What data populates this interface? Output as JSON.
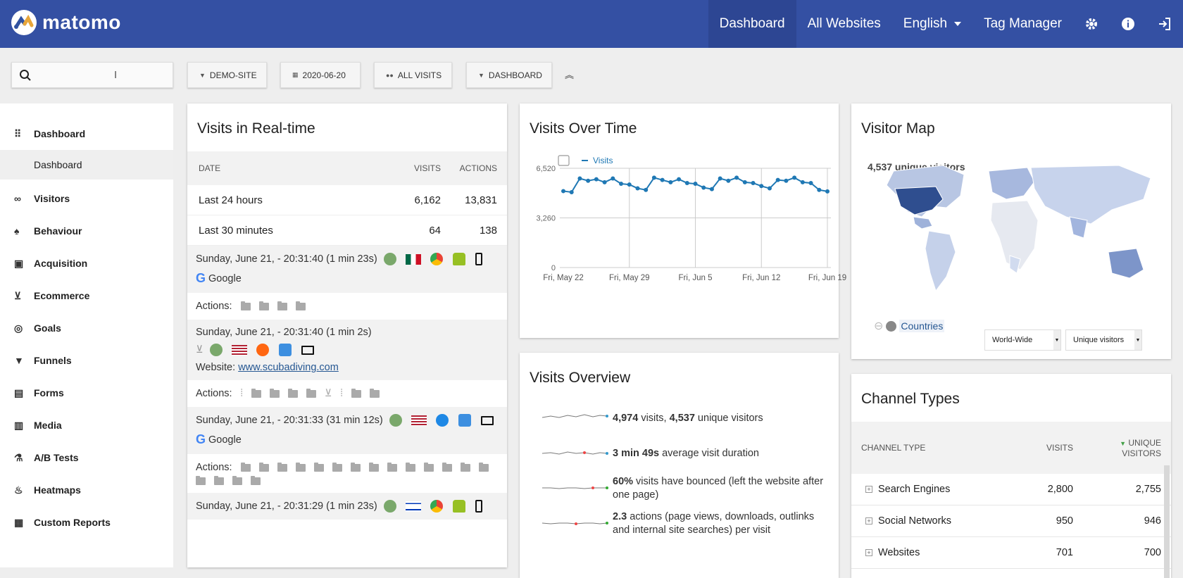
{
  "app": {
    "brand": "matomo",
    "accent": "#3450a3"
  },
  "topnav": {
    "dashboard": "Dashboard",
    "all_websites": "All Websites",
    "language": "English",
    "tag_manager": "Tag Manager"
  },
  "toolbar": {
    "site": "DEMO-SITE",
    "date": "2020-06-20",
    "segment": "ALL VISITS",
    "dashboard": "DASHBOARD"
  },
  "sidebar": {
    "items": [
      {
        "label": "Dashboard",
        "icon": "grid-icon"
      },
      {
        "label": "Visitors",
        "icon": "binoculars-icon"
      },
      {
        "label": "Behaviour",
        "icon": "bell-icon"
      },
      {
        "label": "Acquisition",
        "icon": "calendar-icon"
      },
      {
        "label": "Ecommerce",
        "icon": "cart-icon"
      },
      {
        "label": "Goals",
        "icon": "target-icon"
      },
      {
        "label": "Funnels",
        "icon": "funnel-icon"
      },
      {
        "label": "Forms",
        "icon": "form-icon"
      },
      {
        "label": "Media",
        "icon": "media-icon"
      },
      {
        "label": "A/B Tests",
        "icon": "flask-icon"
      },
      {
        "label": "Heatmaps",
        "icon": "flame-icon"
      },
      {
        "label": "Custom Reports",
        "icon": "report-icon"
      }
    ],
    "sub_item": "Dashboard"
  },
  "realtime": {
    "title": "Visits in Real-time",
    "headers": {
      "date": "DATE",
      "visits": "VISITS",
      "actions": "ACTIONS"
    },
    "rows": [
      {
        "label": "Last 24 hours",
        "visits": "6,162",
        "actions": "13,831"
      },
      {
        "label": "Last 30 minutes",
        "visits": "64",
        "actions": "138"
      }
    ],
    "visits": [
      {
        "time": "Sunday, June 21, - 20:31:40 (1 min 23s)",
        "referrer": "Google"
      },
      {
        "time": "Sunday, June 21, - 20:31:40 (1 min 2s)",
        "website_label": "Website:",
        "website": "www.scubadiving.com"
      },
      {
        "time": "Sunday, June 21, - 20:31:33 (31 min 12s)",
        "referrer": "Google"
      },
      {
        "time": "Sunday, June 21, - 20:31:29 (1 min 23s)"
      }
    ],
    "actions_label": "Actions:"
  },
  "visits_over_time": {
    "title": "Visits Over Time"
  },
  "chart_data": {
    "type": "line",
    "series": [
      {
        "name": "Visits",
        "values": [
          5020,
          4950,
          5850,
          5700,
          5800,
          5600,
          5850,
          5500,
          5450,
          5200,
          5100,
          5900,
          5750,
          5600,
          5800,
          5550,
          5500,
          5250,
          5150,
          5850,
          5700,
          5900,
          5600,
          5550,
          5350,
          5200,
          5750,
          5700,
          5900,
          5600,
          5550,
          5100,
          5000
        ]
      }
    ],
    "x_ticks": [
      "Fri, May 22",
      "Fri, May 29",
      "Fri, Jun 5",
      "Fri, Jun 12",
      "Fri, Jun 19"
    ],
    "y_ticks": [
      "0",
      "3,260",
      "6,520"
    ],
    "ylim": [
      0,
      6520
    ],
    "color": "#1f78b4",
    "grid": true,
    "legend": "top-left"
  },
  "overview": {
    "title": "Visits Overview",
    "rows": [
      {
        "b1": "4,974",
        "t1": " visits, ",
        "b2": "4,537",
        "t2": " unique visitors"
      },
      {
        "b1": "3 min 49s",
        "t1": " average visit duration",
        "b2": "",
        "t2": ""
      },
      {
        "b1": "60%",
        "t1": " visits have bounced (left the website after one page)",
        "b2": "",
        "t2": ""
      },
      {
        "b1": "2.3",
        "t1": " actions (page views, downloads, outlinks and internal site searches) per visit",
        "b2": "",
        "t2": ""
      }
    ]
  },
  "map": {
    "title": "Visitor Map",
    "unique": "4,537 unique visitors",
    "countries": "Countries",
    "region": "World-Wide",
    "metric": "Unique visitors"
  },
  "channels": {
    "title": "Channel Types",
    "headers": {
      "type": "CHANNEL TYPE",
      "visits": "VISITS",
      "unique1": "UNIQUE",
      "unique2": "VISITORS"
    },
    "rows": [
      {
        "label": "Search Engines",
        "visits": "2,800",
        "unique": "2,755"
      },
      {
        "label": "Social Networks",
        "visits": "950",
        "unique": "946"
      },
      {
        "label": "Websites",
        "visits": "701",
        "unique": "700"
      }
    ]
  }
}
